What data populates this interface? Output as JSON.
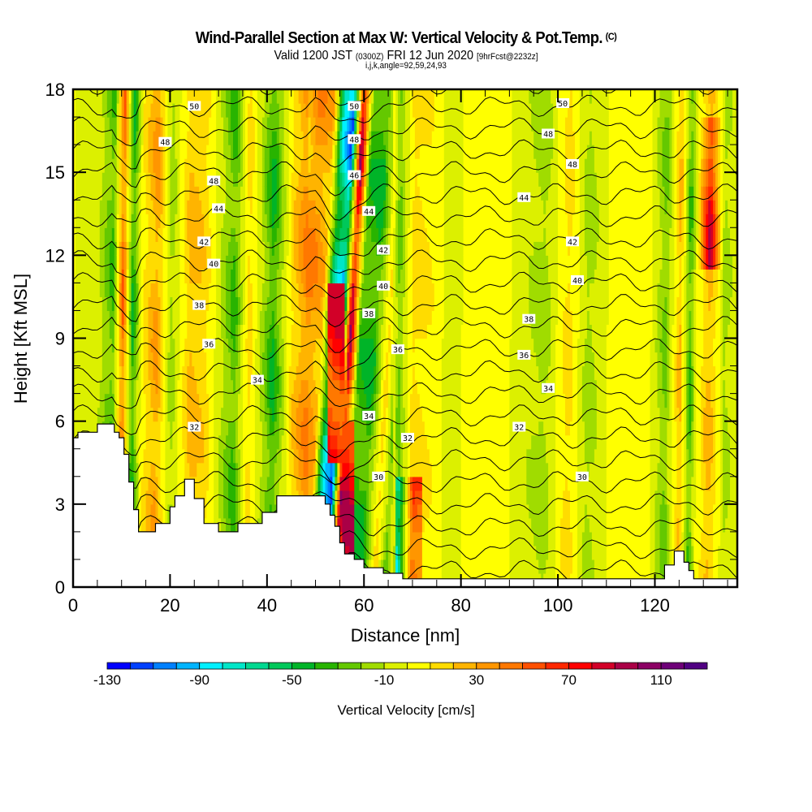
{
  "chart_data": {
    "type": "heatmap",
    "title": "Wind-Parallel Section at Max W: Vertical Velocity & Pot.Temp.",
    "title_mark": "(C)",
    "subtitle_parts": [
      "Valid 1200 JST ",
      "(0300Z)",
      " FRI 12 Jun 2020 ",
      "[9hrFcst@2232z]"
    ],
    "subtitle2": "i,j,k,angle=92,59,24,93",
    "xlabel": "Distance [nm]",
    "ylabel": "Height [Kft MSL]",
    "xlim": [
      0,
      137
    ],
    "ylim": [
      0,
      18
    ],
    "xticks": [
      0,
      20,
      40,
      60,
      80,
      100,
      120
    ],
    "xtick_labels": [
      "0",
      "20",
      "40",
      "60",
      "80",
      "100",
      "120"
    ],
    "yticks": [
      0,
      3,
      6,
      9,
      12,
      15,
      18
    ],
    "ytick_labels": [
      "0",
      "3",
      "6",
      "9",
      "12",
      "15",
      "18"
    ],
    "colorbar": {
      "title": "Vertical Velocity [cm/s]",
      "min": -130,
      "max": 130,
      "step": 10,
      "tick_values": [
        -130,
        -90,
        -50,
        -10,
        30,
        70,
        110
      ],
      "tick_labels": [
        "-130",
        "-90",
        "-50",
        "-10",
        "30",
        "70",
        "110"
      ],
      "colors": [
        "#0000ff",
        "#0040ff",
        "#0080ff",
        "#00b4ff",
        "#00f0ff",
        "#00e6c8",
        "#00d890",
        "#00c85a",
        "#00b428",
        "#28b400",
        "#64c800",
        "#a0dc00",
        "#dcf000",
        "#ffff00",
        "#ffdc00",
        "#ffb400",
        "#ff9600",
        "#ff7800",
        "#ff5000",
        "#ff2800",
        "#ff0000",
        "#d20028",
        "#aa0046",
        "#8c0064",
        "#6e0078",
        "#500082"
      ]
    },
    "velocity_columns": [
      {
        "x": 0,
        "w": 0
      },
      {
        "x": 5,
        "w": -10
      },
      {
        "x": 8,
        "w": -40
      },
      {
        "x": 10,
        "w": 60
      },
      {
        "x": 12,
        "w": -50
      },
      {
        "x": 14,
        "w": 10
      },
      {
        "x": 17,
        "w": 40
      },
      {
        "x": 20,
        "w": -20
      },
      {
        "x": 24,
        "w": 30
      },
      {
        "x": 27,
        "w": 20
      },
      {
        "x": 30,
        "w": -10
      },
      {
        "x": 33,
        "w": -40
      },
      {
        "x": 36,
        "w": 20
      },
      {
        "x": 39,
        "w": -20
      },
      {
        "x": 41,
        "w": -50
      },
      {
        "x": 45,
        "w": 20
      },
      {
        "x": 48,
        "w": 50
      },
      {
        "x": 51,
        "w": 30
      },
      {
        "x": 53,
        "w": -80
      },
      {
        "x": 55,
        "w": -120
      },
      {
        "x": 57,
        "w": 110
      },
      {
        "x": 59,
        "w": -40
      },
      {
        "x": 62,
        "w": -50
      },
      {
        "x": 65,
        "w": 20
      },
      {
        "x": 67,
        "w": -30
      },
      {
        "x": 70,
        "w": 20
      },
      {
        "x": 74,
        "w": 10
      },
      {
        "x": 78,
        "w": -10
      },
      {
        "x": 82,
        "w": 10
      },
      {
        "x": 90,
        "w": 0
      },
      {
        "x": 97,
        "w": -20
      },
      {
        "x": 102,
        "w": 20
      },
      {
        "x": 106,
        "w": -20
      },
      {
        "x": 112,
        "w": 10
      },
      {
        "x": 118,
        "w": 10
      },
      {
        "x": 122,
        "w": -30
      },
      {
        "x": 125,
        "w": 30
      },
      {
        "x": 127,
        "w": -40
      },
      {
        "x": 131,
        "w": 80
      },
      {
        "x": 134,
        "w": -20
      },
      {
        "x": 137,
        "w": 0
      }
    ],
    "theta_contours": {
      "levels_K": [
        29,
        30,
        31,
        32,
        33,
        34,
        35,
        36,
        37,
        38,
        39,
        40,
        41,
        42,
        43,
        44,
        45,
        46,
        47,
        48,
        49,
        50,
        51
      ],
      "labels": [
        {
          "text": "50",
          "x": 25,
          "y": 17.4
        },
        {
          "text": "48",
          "x": 19,
          "y": 16.1
        },
        {
          "text": "48",
          "x": 29,
          "y": 14.7
        },
        {
          "text": "44",
          "x": 30,
          "y": 13.7
        },
        {
          "text": "42",
          "x": 27,
          "y": 12.5
        },
        {
          "text": "40",
          "x": 29,
          "y": 11.7
        },
        {
          "text": "38",
          "x": 26,
          "y": 10.2
        },
        {
          "text": "36",
          "x": 28,
          "y": 8.8
        },
        {
          "text": "34",
          "x": 38,
          "y": 7.5
        },
        {
          "text": "32",
          "x": 25,
          "y": 5.8
        },
        {
          "text": "50",
          "x": 58,
          "y": 17.4
        },
        {
          "text": "48",
          "x": 58,
          "y": 16.2
        },
        {
          "text": "46",
          "x": 58,
          "y": 14.9
        },
        {
          "text": "44",
          "x": 61,
          "y": 13.6
        },
        {
          "text": "42",
          "x": 64,
          "y": 12.2
        },
        {
          "text": "40",
          "x": 64,
          "y": 10.9
        },
        {
          "text": "38",
          "x": 61,
          "y": 9.9
        },
        {
          "text": "36",
          "x": 67,
          "y": 8.6
        },
        {
          "text": "34",
          "x": 61,
          "y": 6.2
        },
        {
          "text": "32",
          "x": 69,
          "y": 5.4
        },
        {
          "text": "30",
          "x": 63,
          "y": 4.0
        },
        {
          "text": "50",
          "x": 101,
          "y": 17.5
        },
        {
          "text": "48",
          "x": 98,
          "y": 16.4
        },
        {
          "text": "48",
          "x": 103,
          "y": 15.3
        },
        {
          "text": "44",
          "x": 93,
          "y": 14.1
        },
        {
          "text": "42",
          "x": 103,
          "y": 12.5
        },
        {
          "text": "40",
          "x": 104,
          "y": 11.1
        },
        {
          "text": "38",
          "x": 94,
          "y": 9.7
        },
        {
          "text": "36",
          "x": 93,
          "y": 8.4
        },
        {
          "text": "34",
          "x": 98,
          "y": 7.2
        },
        {
          "text": "32",
          "x": 92,
          "y": 5.8
        },
        {
          "text": "30",
          "x": 105,
          "y": 4.0
        }
      ]
    },
    "terrain_kft": [
      [
        0,
        5.4
      ],
      [
        1,
        5.4
      ],
      [
        1,
        5.6
      ],
      [
        5,
        5.6
      ],
      [
        5,
        5.9
      ],
      [
        8.5,
        5.9
      ],
      [
        8.5,
        5.6
      ],
      [
        9.5,
        5.6
      ],
      [
        9.5,
        5.4
      ],
      [
        10.5,
        5.4
      ],
      [
        10.5,
        4.8
      ],
      [
        11.5,
        4.8
      ],
      [
        11.5,
        3.8
      ],
      [
        12.5,
        3.8
      ],
      [
        12.5,
        2.8
      ],
      [
        13.5,
        2.8
      ],
      [
        13.5,
        2.0
      ],
      [
        17,
        2.0
      ],
      [
        17,
        2.3
      ],
      [
        20,
        2.3
      ],
      [
        20,
        2.9
      ],
      [
        21,
        2.9
      ],
      [
        21,
        3.3
      ],
      [
        23,
        3.3
      ],
      [
        23,
        3.9
      ],
      [
        25,
        3.9
      ],
      [
        25,
        3.2
      ],
      [
        27,
        3.2
      ],
      [
        27,
        2.3
      ],
      [
        30,
        2.3
      ],
      [
        30,
        2.0
      ],
      [
        34,
        2.0
      ],
      [
        34,
        2.3
      ],
      [
        39,
        2.3
      ],
      [
        39,
        2.7
      ],
      [
        42,
        2.7
      ],
      [
        42,
        3.3
      ],
      [
        52,
        3.3
      ],
      [
        52,
        3.0
      ],
      [
        53,
        3.0
      ],
      [
        53,
        2.6
      ],
      [
        54,
        2.6
      ],
      [
        54,
        2.2
      ],
      [
        55,
        2.2
      ],
      [
        55,
        1.6
      ],
      [
        56,
        1.6
      ],
      [
        56,
        1.2
      ],
      [
        58,
        1.2
      ],
      [
        58,
        1.0
      ],
      [
        60,
        1.0
      ],
      [
        60,
        0.7
      ],
      [
        64,
        0.7
      ],
      [
        64,
        0.5
      ],
      [
        68,
        0.5
      ],
      [
        68,
        0.3
      ],
      [
        122,
        0.3
      ],
      [
        122,
        0.8
      ],
      [
        124,
        0.8
      ],
      [
        124,
        1.3
      ],
      [
        126,
        1.3
      ],
      [
        126,
        0.9
      ],
      [
        127,
        0.9
      ],
      [
        127,
        0.6
      ],
      [
        128,
        0.6
      ],
      [
        128,
        0.3
      ],
      [
        137,
        0.3
      ]
    ]
  }
}
